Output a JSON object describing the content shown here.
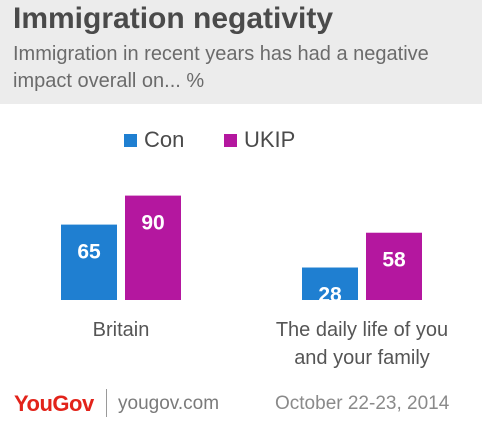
{
  "footer": {
    "logo": "YouGov",
    "site": "yougov.com",
    "date": "October 22-23, 2014"
  },
  "colors": {
    "con": "#1f7fd1",
    "ukip": "#b4179f",
    "header_bg": "#ececec",
    "logo": "#e2231a"
  },
  "chart_data": {
    "type": "bar",
    "title": "Immigration negativity",
    "subtitle": "Immigration in recent years has had a negative impact overall on... %",
    "categories": [
      [
        "Britain"
      ],
      [
        "The daily life of you",
        "and your family"
      ]
    ],
    "series": [
      {
        "name": "Con",
        "color": "#1f7fd1",
        "values": [
          65,
          28
        ]
      },
      {
        "name": "UKIP",
        "color": "#b4179f",
        "values": [
          90,
          58
        ]
      }
    ],
    "ylim": [
      0,
      100
    ],
    "grid": false,
    "legend": "top-center",
    "data_labels": true
  }
}
